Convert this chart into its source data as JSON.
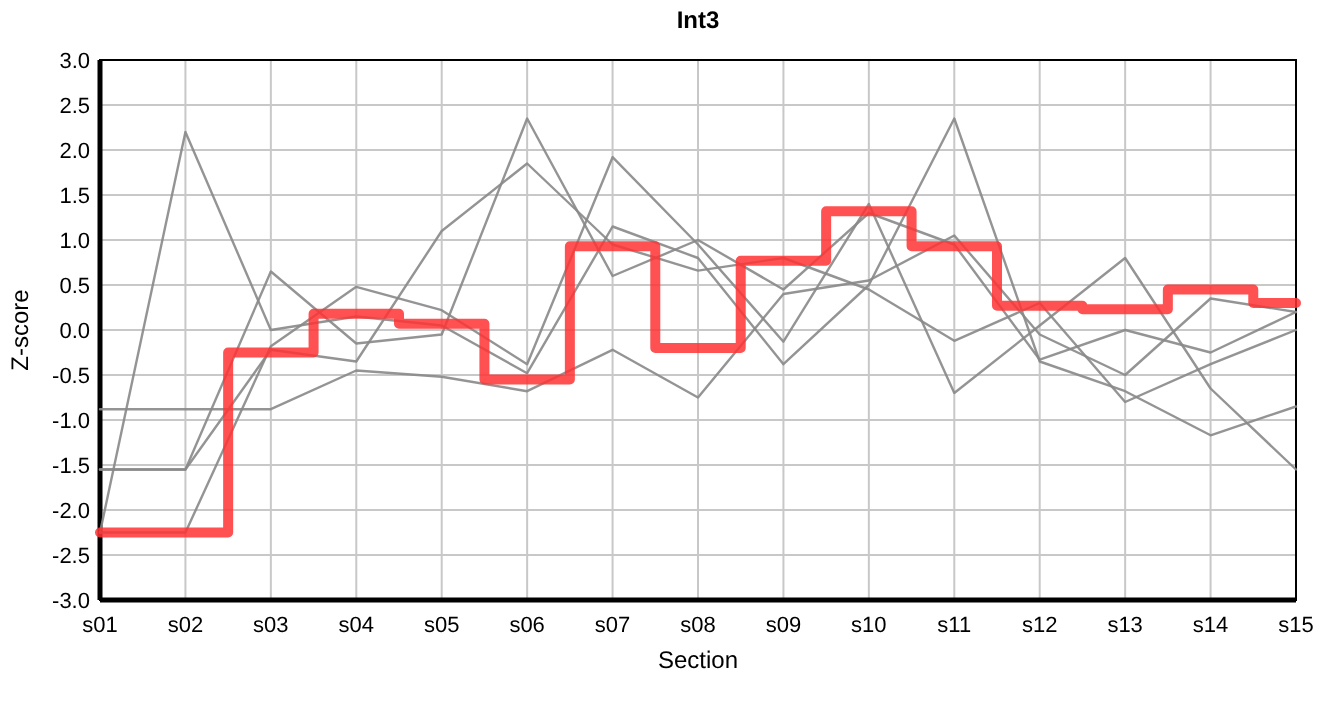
{
  "chart_data": {
    "type": "line",
    "title": "Int3",
    "xlabel": "Section",
    "ylabel": "Z-score",
    "categories": [
      "s01",
      "s02",
      "s03",
      "s04",
      "s05",
      "s06",
      "s07",
      "s08",
      "s09",
      "s10",
      "s11",
      "s12",
      "s13",
      "s14",
      "s15"
    ],
    "ylim": [
      -3,
      3
    ],
    "yticks": [
      {
        "value": -3,
        "label": "-3.0"
      },
      {
        "value": -2.5,
        "label": "-2.5"
      },
      {
        "value": -2,
        "label": "-2.0"
      },
      {
        "value": -1.5,
        "label": "-1.5"
      },
      {
        "value": -1,
        "label": "-1.0"
      },
      {
        "value": -0.5,
        "label": "-0.5"
      },
      {
        "value": 0,
        "label": "0.0"
      },
      {
        "value": 0.5,
        "label": "0.5"
      },
      {
        "value": 1,
        "label": "1.0"
      },
      {
        "value": 1.5,
        "label": "1.5"
      },
      {
        "value": 2,
        "label": "2.0"
      },
      {
        "value": 2.5,
        "label": "2.5"
      },
      {
        "value": 3,
        "label": "3.0"
      }
    ],
    "grid": true,
    "marker": "none",
    "series": [
      {
        "color": "#888888",
        "values": [
          -2.25,
          2.2,
          0.0,
          0.15,
          0.05,
          -0.48,
          1.15,
          0.8,
          -0.38,
          0.5,
          2.35,
          -0.35,
          -0.68,
          -1.17,
          -0.85
        ]
      },
      {
        "color": "#888888",
        "values": [
          -2.25,
          -2.25,
          -0.18,
          0.48,
          0.22,
          -0.38,
          1.92,
          0.95,
          -0.13,
          1.4,
          -0.7,
          0.05,
          0.8,
          -0.65,
          -1.55
        ]
      },
      {
        "color": "#888888",
        "values": [
          -1.55,
          -1.55,
          0.65,
          -0.15,
          -0.05,
          2.35,
          0.6,
          1.0,
          0.45,
          1.3,
          0.95,
          -0.33,
          0.0,
          -0.25,
          0.2
        ]
      },
      {
        "color": "#888888",
        "values": [
          -1.55,
          -1.55,
          -0.22,
          -0.35,
          1.1,
          1.85,
          0.95,
          0.66,
          0.8,
          0.45,
          -0.12,
          0.3,
          -0.8,
          -0.38,
          0.0
        ]
      },
      {
        "color": "#888888",
        "values": [
          -0.88,
          -0.88,
          -0.88,
          -0.45,
          -0.52,
          -0.68,
          -0.22,
          -0.75,
          0.4,
          0.55,
          1.05,
          -0.05,
          -0.5,
          0.35,
          0.2
        ]
      },
      {
        "type": "step",
        "color": "#ff3333",
        "values": [
          -2.25,
          -2.25,
          -0.25,
          0.18,
          0.07,
          -0.55,
          0.93,
          -0.2,
          0.77,
          1.32,
          0.93,
          0.27,
          0.23,
          0.45,
          0.3
        ]
      }
    ]
  }
}
